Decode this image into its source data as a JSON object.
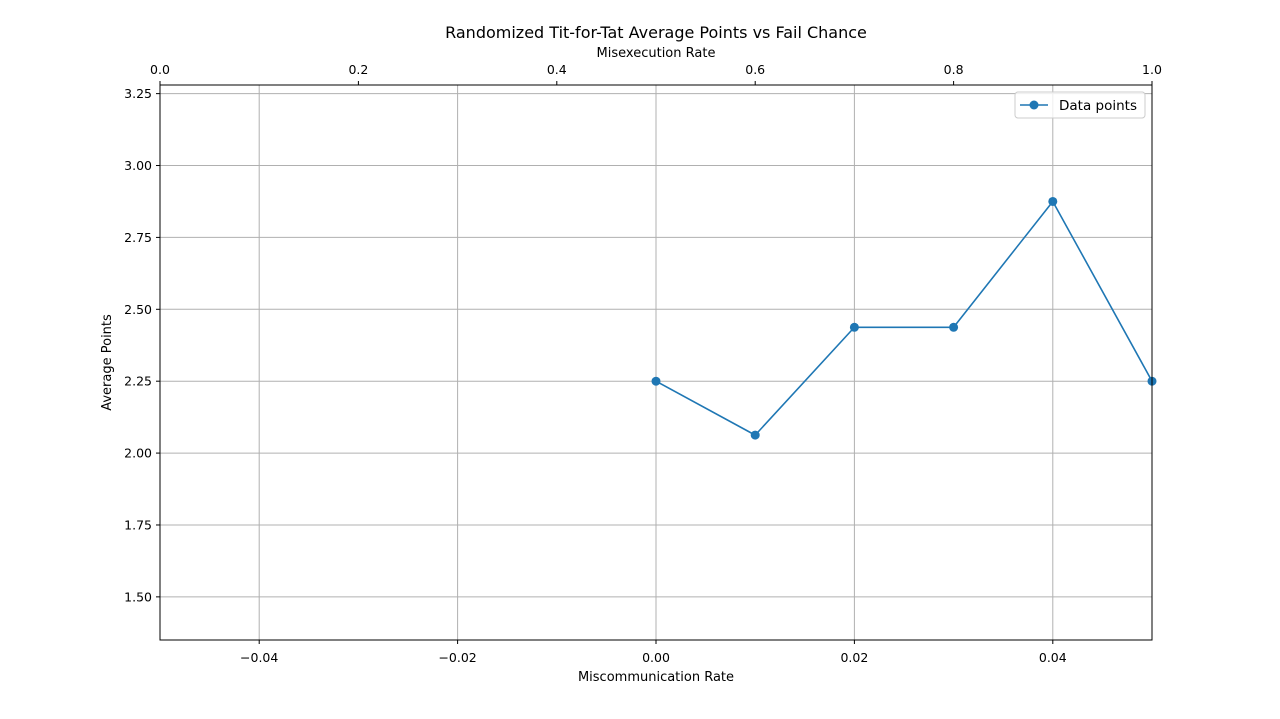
{
  "chart_data": {
    "type": "line",
    "title": "Randomized Tit-for-Tat Average Points vs Fail Chance",
    "xlabel": "Miscommunication Rate",
    "x2label": "Misexecution Rate",
    "ylabel": "Average Points",
    "xlim": [
      -0.05,
      0.05
    ],
    "x2lim": [
      0.0,
      1.0
    ],
    "ylim": [
      1.35,
      3.28
    ],
    "xticks": [
      "−0.04",
      "−0.02",
      "0.00",
      "0.02",
      "0.04"
    ],
    "xtick_values": [
      -0.04,
      -0.02,
      0.0,
      0.02,
      0.04
    ],
    "x2ticks": [
      "0.0",
      "0.2",
      "0.4",
      "0.6",
      "0.8",
      "1.0"
    ],
    "x2tick_values": [
      0.0,
      0.2,
      0.4,
      0.6,
      0.8,
      1.0
    ],
    "yticks": [
      "1.50",
      "1.75",
      "2.00",
      "2.25",
      "2.50",
      "2.75",
      "3.00",
      "3.25"
    ],
    "ytick_values": [
      1.5,
      1.75,
      2.0,
      2.25,
      2.5,
      2.75,
      3.0,
      3.25
    ],
    "grid": true,
    "legend_position": "top-right",
    "series": [
      {
        "name": "Data points",
        "color": "#1f77b4",
        "x": [
          0.0,
          0.01,
          0.02,
          0.03,
          0.04,
          0.05
        ],
        "values": [
          2.25,
          2.0625,
          2.4375,
          2.4375,
          2.875,
          2.25
        ]
      }
    ]
  }
}
